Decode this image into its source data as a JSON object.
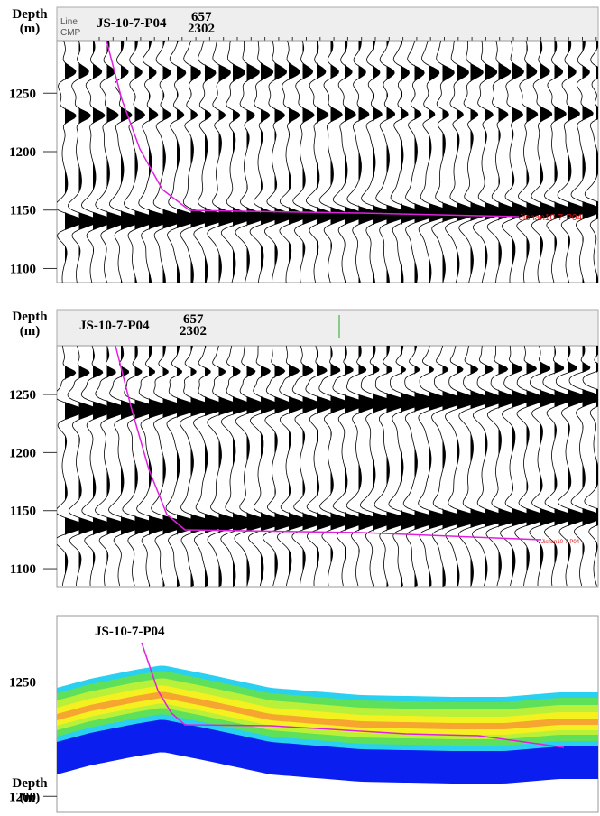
{
  "panels": [
    {
      "depth_label": "Depth",
      "unit_label": "(m)",
      "line_label": "Line",
      "cmp_label": "CMP",
      "well_name": "JS-10-7-P04",
      "line_number": "657",
      "cmp_number": "2302",
      "well_tag": "Jishan10-7-P04",
      "ylim": [
        1088,
        1295
      ],
      "yticks": [
        1100,
        1150,
        1200,
        1250
      ]
    },
    {
      "depth_label": "Depth",
      "unit_label": "(m)",
      "well_name": "JS-10-7-P04",
      "line_number": "657",
      "cmp_number": "2302",
      "well_tag": "Jishan10-7-P04",
      "ylim": [
        1084.5,
        1292
      ],
      "yticks": [
        1100,
        1150,
        1200,
        1250
      ]
    },
    {
      "depth_label": "Depth",
      "unit_label": "(m)",
      "well_name": "JS-10-7-P04",
      "ylim": [
        1193,
        1279
      ],
      "yticks": [
        1200,
        1250
      ]
    }
  ]
}
